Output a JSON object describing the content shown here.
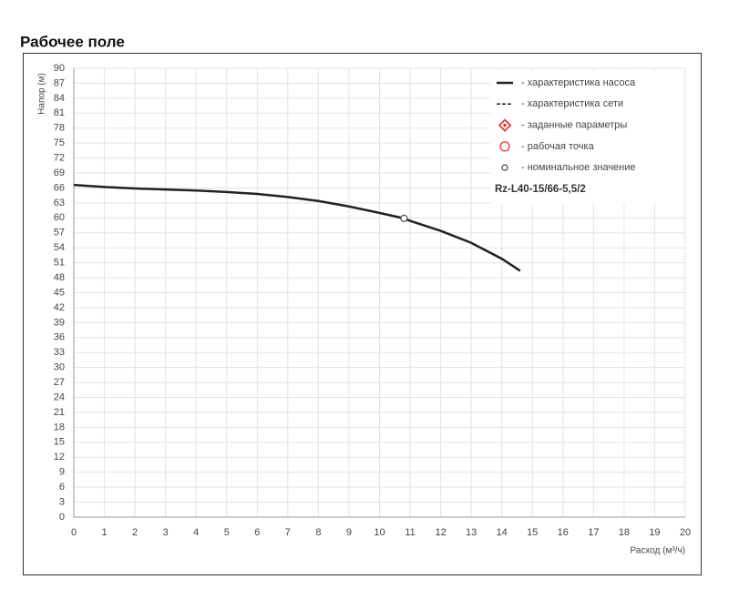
{
  "chart_data": {
    "type": "line",
    "title": "Рабочее поле",
    "x_label": "Расход (м³/ч)",
    "y_label": "Напор (м)",
    "xlim": [
      0,
      20
    ],
    "xticks": [
      0,
      1,
      2,
      3,
      4,
      5,
      6,
      7,
      8,
      9,
      10,
      11,
      12,
      13,
      14,
      15,
      16,
      17,
      18,
      19,
      20
    ],
    "ylim": [
      0,
      90
    ],
    "yticks": [
      0,
      3,
      6,
      9,
      12,
      15,
      18,
      21,
      24,
      27,
      30,
      33,
      36,
      39,
      42,
      45,
      48,
      51,
      54,
      57,
      60,
      63,
      66,
      69,
      72,
      75,
      78,
      81,
      84,
      87,
      90
    ],
    "grid": true,
    "series": [
      {
        "name": "- характеристика насоса",
        "color": "#222222",
        "marker": "solid",
        "x": [
          0,
          1,
          2,
          3,
          4,
          5,
          6,
          7,
          8,
          9,
          10,
          10.8,
          11,
          12,
          13,
          14,
          14.6
        ],
        "values": [
          66.6,
          66.2,
          65.9,
          65.7,
          65.5,
          65.2,
          64.8,
          64.2,
          63.4,
          62.3,
          61,
          59.9,
          59.4,
          57.4,
          55,
          51.8,
          49.4
        ]
      },
      {
        "name": "- характеристика сети",
        "color": "#222222",
        "marker": "dashed",
        "x": [],
        "values": []
      },
      {
        "name": "- заданные параметры",
        "color": "#e53935",
        "marker": "target",
        "x": [],
        "values": []
      },
      {
        "name": "- рабочая точка",
        "color": "#e53935",
        "marker": "circle",
        "x": [],
        "values": []
      },
      {
        "name": "- номинальное значение",
        "color": "#555555",
        "marker": "dot",
        "x": [
          10.8
        ],
        "values": [
          59.9
        ]
      }
    ],
    "model": "Rz-L40-15/66-5,5/2"
  }
}
